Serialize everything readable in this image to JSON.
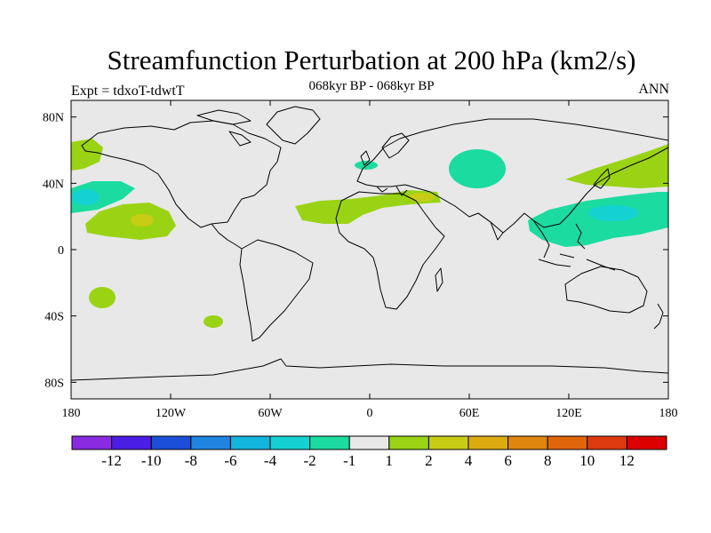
{
  "title": "Streamfunction Perturbation at 200 hPa (km2/s)",
  "subtitle": "068kyr BP - 068kyr BP",
  "left_label": "Expt = tdxoT-tdwtT",
  "right_label": "ANN",
  "map": {
    "projection": "cylindrical-equidistant",
    "lon_range": [
      -180,
      180
    ],
    "lat_range": [
      -90,
      90
    ],
    "background_color": "#e8e8e8",
    "coastline_color": "#000000",
    "lat_ticks": [
      {
        "value": 80,
        "label": "80N"
      },
      {
        "value": 40,
        "label": "40N"
      },
      {
        "value": 0,
        "label": "0"
      },
      {
        "value": -40,
        "label": "40S"
      },
      {
        "value": -80,
        "label": "80S"
      }
    ],
    "lon_ticks": [
      {
        "value": -180,
        "label": "180"
      },
      {
        "value": -120,
        "label": "120W"
      },
      {
        "value": -60,
        "label": "60W"
      },
      {
        "value": 0,
        "label": "0"
      },
      {
        "value": 60,
        "label": "60E"
      },
      {
        "value": 120,
        "label": "120E"
      },
      {
        "value": 180,
        "label": "180"
      }
    ]
  },
  "colorbar": {
    "colors": [
      "#8a2be2",
      "#4b1ee6",
      "#1c4fd8",
      "#1f85e0",
      "#12b5dc",
      "#14d2d2",
      "#1cdba0",
      "#e8e8e8",
      "#9ad314",
      "#c8cc14",
      "#dcab10",
      "#e0860e",
      "#e0660c",
      "#de3a10",
      "#dd0000"
    ],
    "labels": [
      "-12",
      "-10",
      "-8",
      "-6",
      "-4",
      "-2",
      "-1",
      "1",
      "2",
      "4",
      "6",
      "8",
      "10",
      "12"
    ]
  }
}
